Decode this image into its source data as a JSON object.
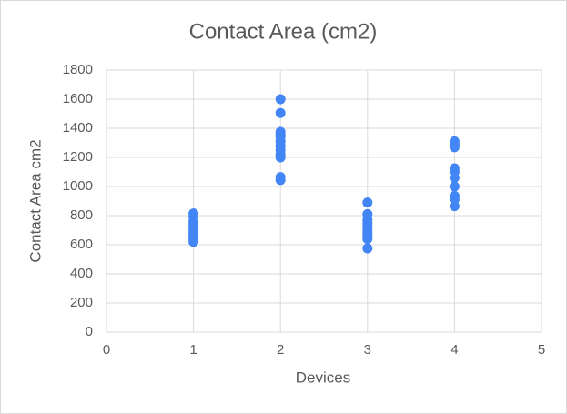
{
  "chart_data": {
    "type": "scatter",
    "title": "Contact Area (cm2)",
    "x_label": "Devices",
    "y_label": "Contact Area cm2",
    "x": [
      1,
      1,
      1,
      1,
      1,
      1,
      1,
      1,
      1,
      1,
      2,
      2,
      2,
      2,
      2,
      2,
      2,
      2,
      2,
      2,
      2,
      2,
      3,
      3,
      3,
      3,
      3,
      3,
      3,
      3,
      3,
      3,
      4,
      4,
      4,
      4,
      4,
      4,
      4,
      4,
      4,
      4
    ],
    "y": [
      815,
      790,
      760,
      740,
      720,
      700,
      680,
      660,
      640,
      620,
      1600,
      1505,
      1375,
      1355,
      1340,
      1310,
      1280,
      1250,
      1220,
      1200,
      1065,
      1045,
      890,
      810,
      770,
      745,
      720,
      700,
      680,
      660,
      640,
      575,
      1310,
      1290,
      1270,
      1125,
      1100,
      1060,
      1000,
      935,
      910,
      865
    ],
    "color": "#4285f4",
    "xlim": [
      0,
      5
    ],
    "xticks": [
      0,
      1,
      2,
      3,
      4,
      5
    ],
    "ylim": [
      0,
      1800
    ],
    "yticks": [
      0,
      200,
      400,
      600,
      800,
      1000,
      1200,
      1400,
      1600,
      1800
    ],
    "grid": true
  }
}
